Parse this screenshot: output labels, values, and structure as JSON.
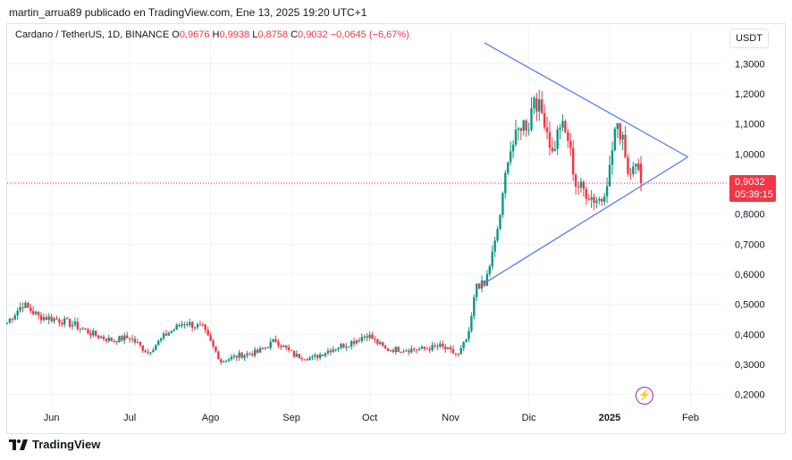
{
  "header": {
    "publish_line": "martin_arrua89 publicado en TradingView.com, Ene 13, 2025 19:20 UTC+1"
  },
  "legend": {
    "symbol": "Cardano / TetherUS, 1D, BINANCE",
    "o_label": "O",
    "o_value": "0,9676",
    "h_label": "H",
    "h_value": "0,9938",
    "l_label": "L",
    "l_value": "0,8758",
    "c_label": "C",
    "c_value": "0,9032",
    "change": "−0,0645 (−6,67%)"
  },
  "currency_button": "USDT",
  "price_tag": {
    "price": "0,9032",
    "countdown": "05:39:15"
  },
  "footer": {
    "brand": "TradingView"
  },
  "icons": {
    "footer_logo": "tradingview-logo-icon",
    "alert": "lightning-icon"
  },
  "colors": {
    "up": "#089981",
    "down": "#f23645",
    "triangle": "#5b7cf5",
    "alert": "#9c27b0"
  },
  "chart_data": {
    "type": "candlestick",
    "symbol": "Cardano / TetherUS",
    "interval": "1D",
    "exchange": "BINANCE",
    "x_ticks": [
      "Jun",
      "Jul",
      "Ago",
      "Sep",
      "Oct",
      "Nov",
      "Dic",
      "2025",
      "Feb"
    ],
    "y_ticks": [
      "1,3000",
      "1,2000",
      "1,1000",
      "1,0000",
      "0,9000",
      "0,8000",
      "0,7000",
      "0,6000",
      "0,5000",
      "0,4000",
      "0,3000",
      "0,2000"
    ],
    "y_tick_values": [
      1.3,
      1.2,
      1.1,
      1.0,
      0.9,
      0.8,
      0.7,
      0.6,
      0.5,
      0.4,
      0.3,
      0.2
    ],
    "ylim": [
      0.16,
      1.34
    ],
    "current_price": 0.9032,
    "triangle_pattern": {
      "upper_line": [
        {
          "date": "2024-11-14",
          "price": 1.37
        },
        {
          "date": "2025-01-31",
          "price": 0.99
        }
      ],
      "lower_line": [
        {
          "date": "2024-11-14",
          "price": 0.57
        },
        {
          "date": "2025-01-31",
          "price": 0.99
        }
      ]
    },
    "close_path": [
      {
        "date": "2024-05-15",
        "close": 0.44
      },
      {
        "date": "2024-05-21",
        "close": 0.5
      },
      {
        "date": "2024-05-27",
        "close": 0.46
      },
      {
        "date": "2024-06-03",
        "close": 0.45
      },
      {
        "date": "2024-06-10",
        "close": 0.43
      },
      {
        "date": "2024-06-17",
        "close": 0.4
      },
      {
        "date": "2024-06-24",
        "close": 0.38
      },
      {
        "date": "2024-07-01",
        "close": 0.39
      },
      {
        "date": "2024-07-05",
        "close": 0.36
      },
      {
        "date": "2024-07-08",
        "close": 0.34
      },
      {
        "date": "2024-07-15",
        "close": 0.4
      },
      {
        "date": "2024-07-22",
        "close": 0.44
      },
      {
        "date": "2024-07-29",
        "close": 0.42
      },
      {
        "date": "2024-08-05",
        "close": 0.31
      },
      {
        "date": "2024-08-12",
        "close": 0.33
      },
      {
        "date": "2024-08-19",
        "close": 0.34
      },
      {
        "date": "2024-08-26",
        "close": 0.38
      },
      {
        "date": "2024-09-02",
        "close": 0.33
      },
      {
        "date": "2024-09-09",
        "close": 0.32
      },
      {
        "date": "2024-09-16",
        "close": 0.35
      },
      {
        "date": "2024-09-23",
        "close": 0.37
      },
      {
        "date": "2024-09-30",
        "close": 0.4
      },
      {
        "date": "2024-10-07",
        "close": 0.35
      },
      {
        "date": "2024-10-14",
        "close": 0.35
      },
      {
        "date": "2024-10-21",
        "close": 0.35
      },
      {
        "date": "2024-10-28",
        "close": 0.36
      },
      {
        "date": "2024-11-04",
        "close": 0.33
      },
      {
        "date": "2024-11-08",
        "close": 0.4
      },
      {
        "date": "2024-11-11",
        "close": 0.57
      },
      {
        "date": "2024-11-14",
        "close": 0.56
      },
      {
        "date": "2024-11-18",
        "close": 0.7
      },
      {
        "date": "2024-11-21",
        "close": 0.85
      },
      {
        "date": "2024-11-23",
        "close": 1.0
      },
      {
        "date": "2024-11-26",
        "close": 1.05
      },
      {
        "date": "2024-11-28",
        "close": 1.1
      },
      {
        "date": "2024-12-01",
        "close": 1.1
      },
      {
        "date": "2024-12-03",
        "close": 1.2
      },
      {
        "date": "2024-12-05",
        "close": 1.15
      },
      {
        "date": "2024-12-07",
        "close": 1.12
      },
      {
        "date": "2024-12-10",
        "close": 1.0
      },
      {
        "date": "2024-12-13",
        "close": 1.1
      },
      {
        "date": "2024-12-16",
        "close": 1.05
      },
      {
        "date": "2024-12-19",
        "close": 0.9
      },
      {
        "date": "2024-12-22",
        "close": 0.88
      },
      {
        "date": "2024-12-26",
        "close": 0.85
      },
      {
        "date": "2024-12-29",
        "close": 0.85
      },
      {
        "date": "2025-01-01",
        "close": 0.95
      },
      {
        "date": "2025-01-03",
        "close": 1.08
      },
      {
        "date": "2025-01-06",
        "close": 1.07
      },
      {
        "date": "2025-01-08",
        "close": 0.94
      },
      {
        "date": "2025-01-10",
        "close": 0.98
      },
      {
        "date": "2025-01-13",
        "close": 0.9032
      }
    ]
  }
}
